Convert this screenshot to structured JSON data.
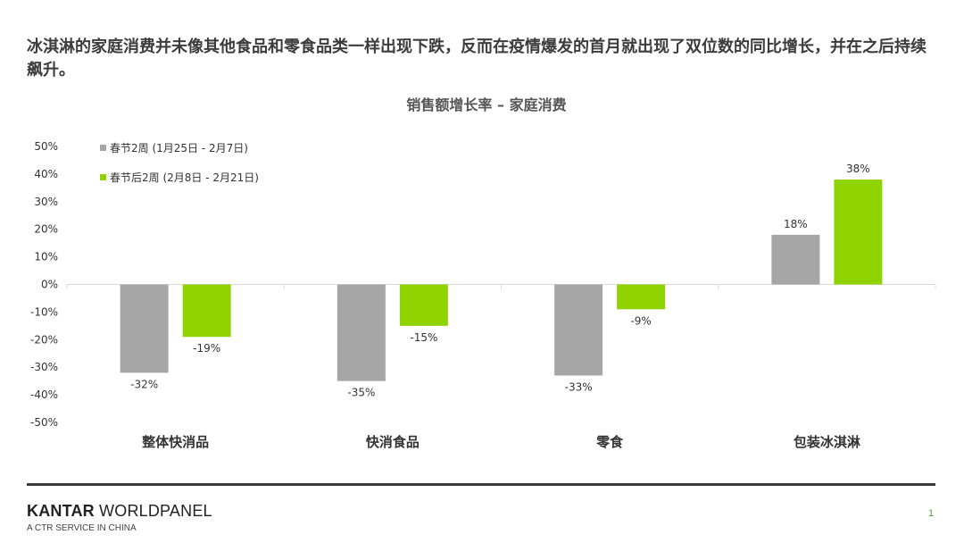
{
  "headline": "冰淇淋的家庭消费并未像其他食品和零食品类一样出现下跌，反而在疫情爆发的首月就出现了双位数的同比增长，并在之后持续飙升。",
  "chart_data": {
    "type": "bar",
    "title": "销售额增长率 – 家庭消费",
    "categories": [
      "整体快消品",
      "快消食品",
      "零食",
      "包装冰淇淋"
    ],
    "series": [
      {
        "name": "春节2周 (1月25日 - 2月7日)",
        "values": [
          -32,
          -35,
          -33,
          18
        ],
        "labels": [
          "-32%",
          "-35%",
          "-33%",
          "18%"
        ],
        "color": "#a6a6a6"
      },
      {
        "name": "春节后2周 (2月8日 - 2月21日)",
        "values": [
          -19,
          -15,
          -9,
          38
        ],
        "labels": [
          "-19%",
          "-15%",
          "-9%",
          "38%"
        ],
        "color": "#8fd400"
      }
    ],
    "ylim": [
      -50,
      50
    ],
    "yticks": [
      50,
      40,
      30,
      20,
      10,
      0,
      -10,
      -20,
      -30,
      -40,
      -50
    ],
    "ytick_labels": [
      "50%",
      "40%",
      "30%",
      "20%",
      "10%",
      "0%",
      "-10%",
      "-20%",
      "-30%",
      "-40%",
      "-50%"
    ],
    "grid": false,
    "legend_position": "top-left"
  },
  "footer": {
    "brand_bold": "KANTAR",
    "brand_rest": " WORLDPANEL",
    "tagline": "A CTR SERVICE IN CHINA",
    "page_number": "1"
  }
}
